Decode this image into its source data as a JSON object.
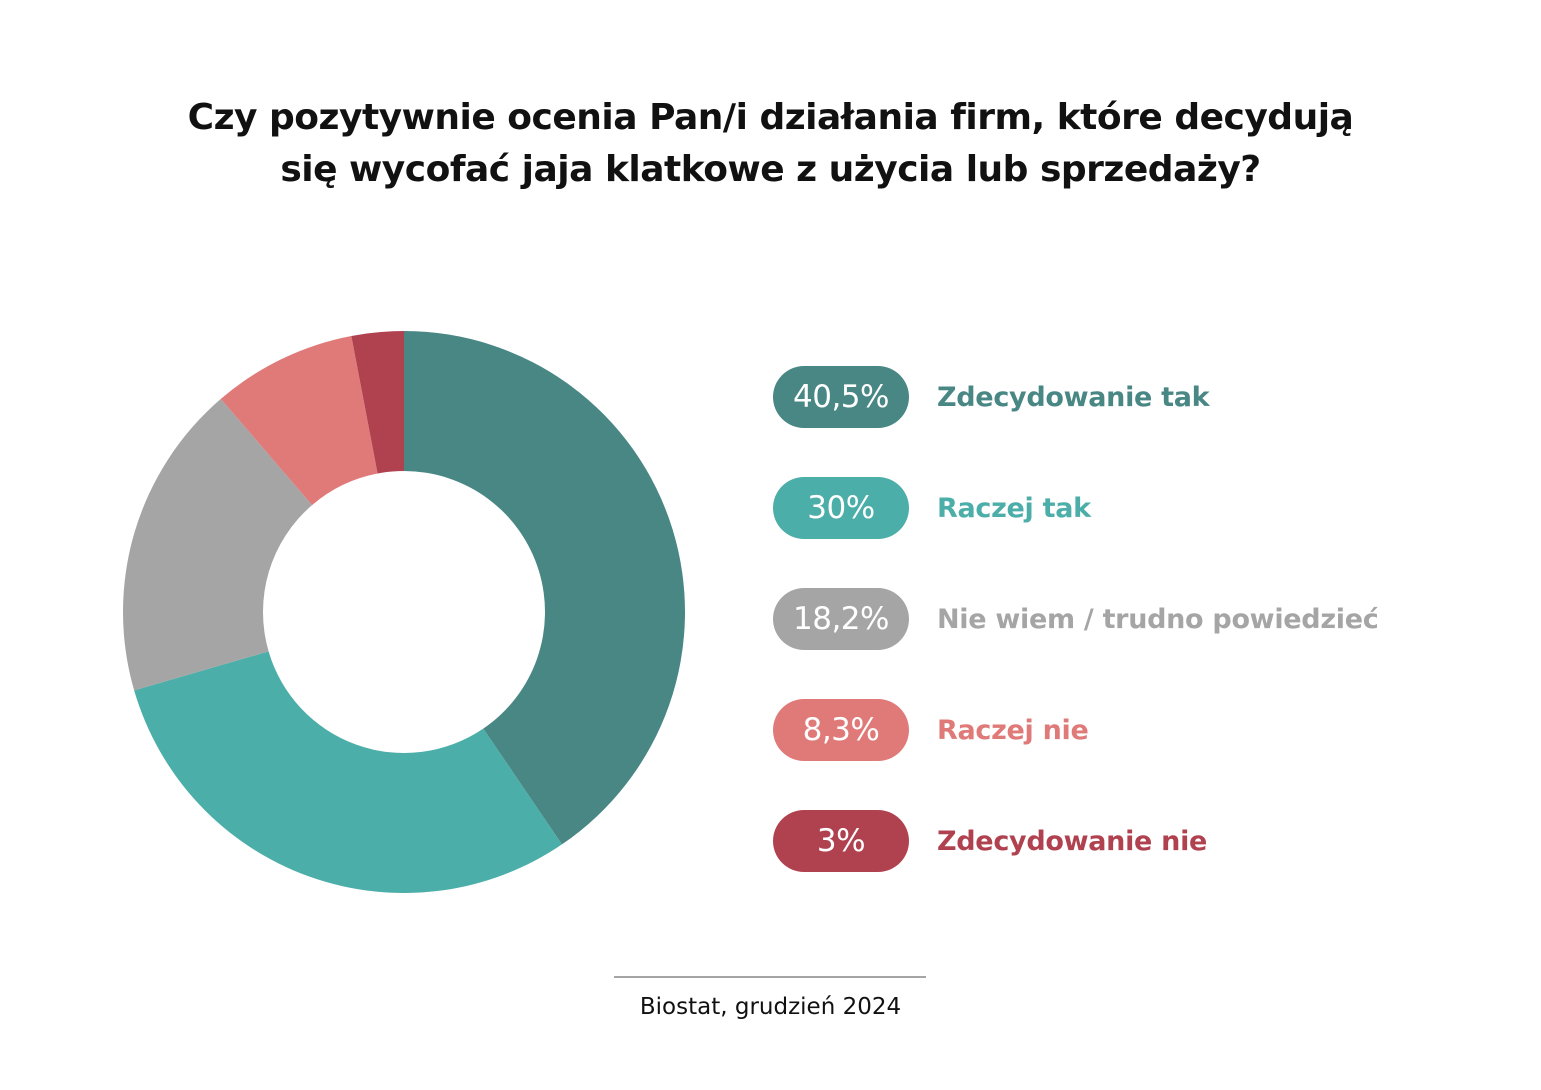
{
  "chart_data": {
    "type": "pie",
    "title_lines": [
      "Czy pozytywnie ocenia Pan/i działania firm, które decydują",
      "się wycofać jaja klatkowe z użycia lub sprzedaży?"
    ],
    "series": [
      {
        "name": "Zdecydowanie tak",
        "value": 40.5,
        "label": "40,5%",
        "color": "#488784"
      },
      {
        "name": "Raczej tak",
        "value": 30,
        "label": "30%",
        "color": "#4caea8"
      },
      {
        "name": "Nie wiem / trudno powiedzieć",
        "value": 18.2,
        "label": "18,2%",
        "color": "#a5a5a5"
      },
      {
        "name": "Raczej nie",
        "value": 8.3,
        "label": "8,3%",
        "color": "#df7a79"
      },
      {
        "name": "Zdecydowanie nie",
        "value": 3,
        "label": "3%",
        "color": "#b04250"
      }
    ],
    "source": "Biostat, grudzień 2024"
  }
}
